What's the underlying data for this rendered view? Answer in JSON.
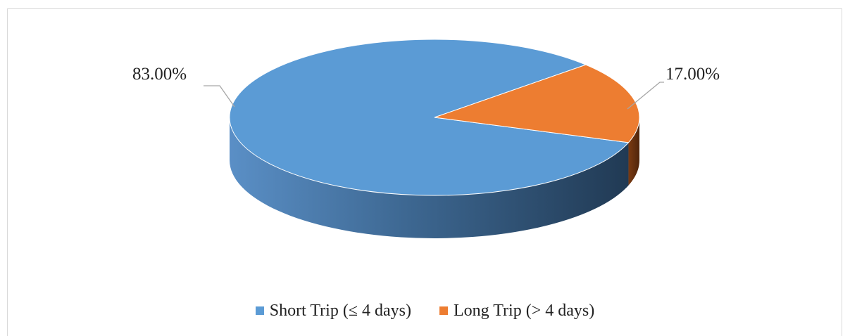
{
  "chart_data": {
    "type": "pie",
    "title": "",
    "slices": [
      {
        "name": "Short Trip (≤ 4 days)",
        "value": 83.0,
        "label": "83.00%",
        "color": "#5b9bd5"
      },
      {
        "name": "Long Trip (> 4 days)",
        "value": 17.0,
        "label": "17.00%",
        "color": "#ed7d31"
      }
    ],
    "legend_position": "bottom",
    "style": "3d-pie"
  }
}
